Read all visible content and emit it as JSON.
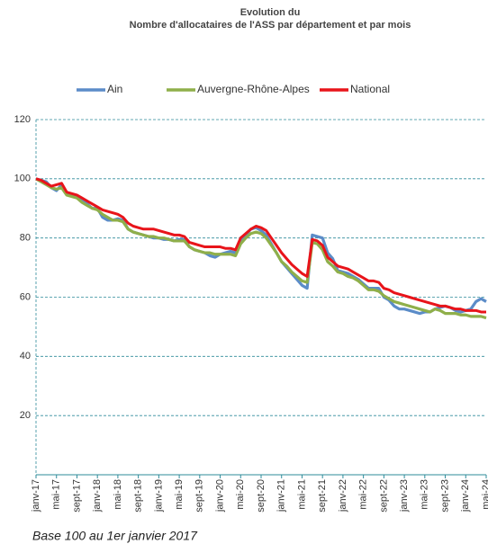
{
  "chart_data": {
    "type": "line",
    "title": "Evolution du",
    "subtitle": "Nombre d'allocataires de l'ASS par département et par mois",
    "note": "Base 100 au 1er janvier 2017",
    "categories": [
      "janv-17",
      null,
      null,
      null,
      "mai-17",
      null,
      null,
      null,
      "sept-17",
      null,
      null,
      null,
      "janv-18",
      null,
      null,
      null,
      "mai-18",
      null,
      null,
      null,
      "sept-18",
      null,
      null,
      null,
      "janv-19",
      null,
      null,
      null,
      "mai-19",
      null,
      null,
      null,
      "sept-19",
      null,
      null,
      null,
      "janv-20",
      null,
      null,
      null,
      "mai-20",
      null,
      null,
      null,
      "sept-20",
      null,
      null,
      null,
      "janv-21",
      null,
      null,
      null,
      "mai-21",
      null,
      null,
      null,
      "sept-21",
      null,
      null,
      null,
      "janv-22",
      null,
      null,
      null,
      "mai-22",
      null,
      null,
      null,
      "sept-22",
      null,
      null,
      null,
      "janv-23",
      null,
      null,
      null,
      "mai-23",
      null,
      null,
      null,
      "sept-23",
      null,
      null,
      null,
      "janv-24",
      null,
      null,
      null,
      "mai-24"
    ],
    "series": [
      {
        "name": "Ain",
        "color": "#5b8cc8",
        "values": [
          100,
          99.5,
          99,
          97,
          96,
          98,
          95,
          94.5,
          94,
          93,
          91.5,
          90,
          90,
          87,
          86,
          86,
          86.5,
          86,
          83,
          82,
          81.5,
          81,
          80.5,
          80,
          80,
          79.5,
          79.5,
          79,
          79.5,
          79.5,
          77,
          76,
          75.5,
          75,
          74,
          73.5,
          74.5,
          75,
          75.5,
          75,
          79,
          81,
          83,
          83.5,
          82.5,
          81,
          78,
          75,
          72,
          70,
          68,
          66,
          64,
          63,
          81,
          80.5,
          80,
          75,
          73,
          69,
          68.5,
          68,
          67,
          66,
          64.5,
          63,
          63,
          63,
          60,
          59,
          57,
          56,
          56,
          55.5,
          55,
          54.5,
          55,
          55,
          56,
          56.5,
          57,
          56.5,
          55.5,
          55,
          55.5,
          56,
          58.5,
          59.5,
          58.5
        ]
      },
      {
        "name": "Auvergne-Rhône-Alpes",
        "color": "#8faf4a",
        "values": [
          100,
          99,
          98,
          97,
          96.5,
          97,
          94.5,
          94,
          93.5,
          92,
          91,
          90,
          89.5,
          88,
          87,
          86,
          86,
          85.5,
          83,
          82,
          81.5,
          81,
          80.5,
          80.5,
          80,
          80,
          79.5,
          79,
          79,
          79,
          77,
          76,
          75.5,
          75,
          75,
          74.5,
          74.5,
          74.5,
          74.5,
          74,
          78,
          80,
          81.5,
          82,
          81.5,
          80,
          77.5,
          75,
          72,
          70.5,
          68.5,
          67,
          65.5,
          65,
          78.5,
          78,
          76,
          72,
          70.5,
          68.5,
          68,
          67,
          66.5,
          65.5,
          64,
          62.5,
          62.5,
          62,
          60.5,
          59.5,
          58.5,
          58,
          57.5,
          57,
          56.5,
          56,
          55.5,
          55,
          56,
          55.5,
          54.5,
          54.5,
          54.5,
          54,
          54,
          53.5,
          53.5,
          53.5,
          53
        ]
      },
      {
        "name": "National",
        "color": "#e8141a",
        "values": [
          100,
          99.5,
          98.5,
          97.5,
          98,
          98.5,
          95.5,
          95,
          94.5,
          93.5,
          92.5,
          91.5,
          90.5,
          89.5,
          89,
          88.5,
          88,
          87,
          85,
          84,
          83.5,
          83,
          83,
          83,
          82.5,
          82,
          81.5,
          81,
          81,
          80.5,
          78.5,
          78,
          77.5,
          77,
          77,
          77,
          77,
          76.5,
          76.5,
          76,
          80,
          81.5,
          83,
          84,
          83.5,
          82.5,
          80,
          77.5,
          75,
          73,
          71,
          69.5,
          68,
          67,
          79.5,
          79,
          77.5,
          73.5,
          72,
          70.5,
          70,
          69.5,
          68.5,
          67.5,
          66.5,
          65.5,
          65.5,
          65,
          63,
          62.5,
          61.5,
          61,
          60.5,
          60,
          59.5,
          59,
          58.5,
          58,
          57.5,
          57,
          57,
          56.5,
          56,
          56,
          55.5,
          55.5,
          55.5,
          55,
          55
        ]
      }
    ],
    "ylim": [
      0,
      120
    ],
    "yticks": [
      20,
      40,
      60,
      80,
      100,
      120
    ],
    "grid": true
  }
}
